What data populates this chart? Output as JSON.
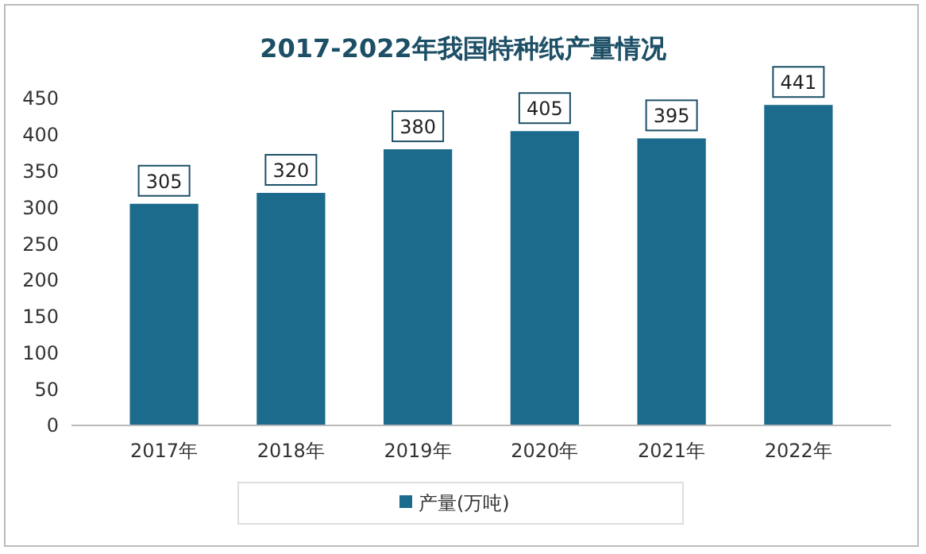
{
  "chart_data": {
    "type": "bar",
    "title": "2017-2022年我国特种纸产量情况",
    "categories": [
      "2017年",
      "2018年",
      "2019年",
      "2020年",
      "2021年",
      "2022年"
    ],
    "series": [
      {
        "name": "产量(万吨)",
        "color": "#1c6a8c",
        "values": [
          305,
          320,
          380,
          405,
          395,
          441
        ]
      }
    ],
    "ylim": [
      0,
      450
    ],
    "yticks": [
      0,
      50,
      100,
      150,
      200,
      250,
      300,
      350,
      400,
      450
    ],
    "data_labels": true,
    "legend": "bottom",
    "grid": false
  }
}
